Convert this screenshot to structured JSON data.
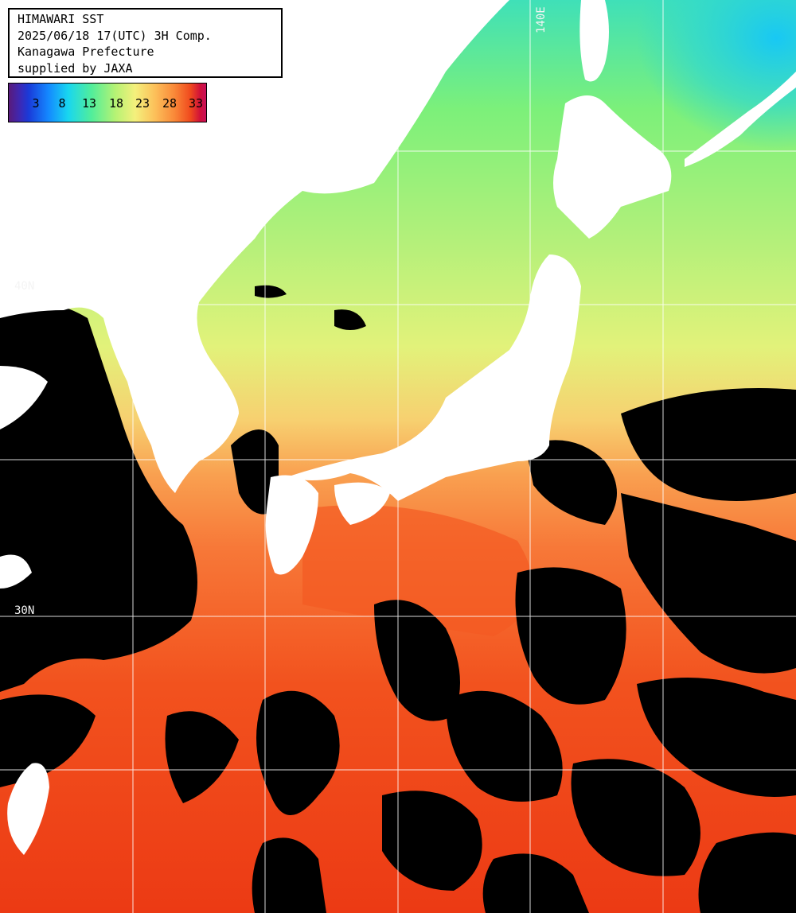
{
  "title": {
    "line1": "HIMAWARI SST",
    "line2": "2025/06/18 17(UTC) 3H Comp.",
    "line3": "Kanagawa Prefecture",
    "line4": "supplied by JAXA"
  },
  "legend": {
    "values": [
      "3",
      "8",
      "13",
      "18",
      "23",
      "28",
      "33"
    ]
  },
  "grid_labels": {
    "lon_140": "140E",
    "lat_40": "40N",
    "lat_30": "30N"
  },
  "colors": {
    "land": "#ffffff",
    "cloud": "#000000",
    "grid": "#ffffff"
  }
}
